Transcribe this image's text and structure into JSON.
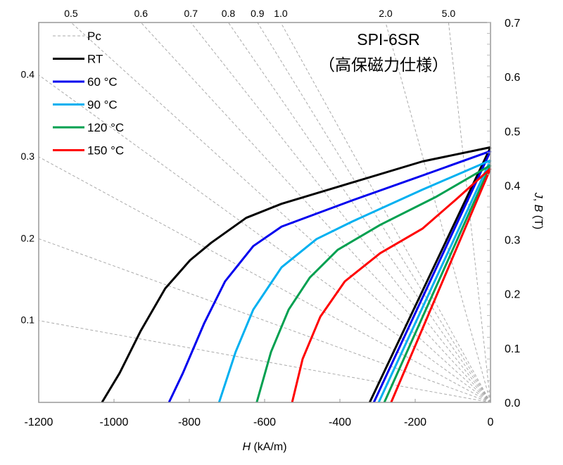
{
  "chart_data": {
    "type": "line",
    "title": "SPI-6SR",
    "subtitle": "（高保磁力仕様）",
    "xlabel": "H (kA/m)",
    "xlabel_italic": "H",
    "xlabel_unit": " (kA/m)",
    "ylabel": "J, B (T)",
    "ylabel_parts": {
      "j": "J",
      "sep": ", ",
      "b": "B",
      "unit": " (T)"
    },
    "xlim": [
      -1200,
      0
    ],
    "ylim": [
      0,
      0.7
    ],
    "x_ticks": [
      -1200,
      -1000,
      -800,
      -600,
      -400,
      -200,
      0
    ],
    "x_tick_labels": [
      "-1200",
      "-1000",
      "-800",
      "-600",
      "-400",
      "-200",
      "0"
    ],
    "y_ticks": [
      0.0,
      0.1,
      0.2,
      0.3,
      0.4,
      0.5,
      0.6,
      0.7
    ],
    "y_tick_labels": [
      "0.0",
      "0.1",
      "0.2",
      "0.3",
      "0.4",
      "0.5",
      "0.6",
      "0.7"
    ],
    "y_axis_side": "right",
    "grid": false,
    "legend_position": "top-left",
    "pc_lines": {
      "name": "Pc",
      "color": "#aaaaaa",
      "values": [
        0.1,
        0.2,
        0.3,
        0.4,
        0.5,
        0.6,
        0.7,
        0.8,
        0.9,
        1.0,
        2.0,
        5.0
      ],
      "labels": [
        "0.1",
        "0.2",
        "0.3",
        "0.4",
        "0.5",
        "0.6",
        "0.7",
        "0.8",
        "0.9",
        "1.0",
        "2.0",
        "5.0"
      ]
    },
    "series": [
      {
        "name": "RT",
        "color": "#000000",
        "J": [
          [
            -1032,
            0
          ],
          [
            -985,
            0.054
          ],
          [
            -929,
            0.132
          ],
          [
            -864,
            0.21
          ],
          [
            -798,
            0.262
          ],
          [
            -742,
            0.294
          ],
          [
            -649,
            0.34
          ],
          [
            -555,
            0.366
          ],
          [
            -368,
            0.405
          ],
          [
            -181,
            0.444
          ],
          [
            0,
            0.47
          ]
        ],
        "B": [
          [
            -321,
            0
          ],
          [
            0,
            0.47
          ]
        ]
      },
      {
        "name": "60 °C",
        "color": "#0000ee",
        "J": [
          [
            -854,
            0
          ],
          [
            -817,
            0.054
          ],
          [
            -761,
            0.145
          ],
          [
            -705,
            0.223
          ],
          [
            -630,
            0.288
          ],
          [
            -555,
            0.324
          ],
          [
            -368,
            0.372
          ],
          [
            -181,
            0.418
          ],
          [
            0,
            0.463
          ]
        ],
        "B": [
          [
            -310,
            0
          ],
          [
            0,
            0.463
          ]
        ]
      },
      {
        "name": "90 °C",
        "color": "#00b0f0",
        "J": [
          [
            -721,
            0
          ],
          [
            -677,
            0.093
          ],
          [
            -630,
            0.171
          ],
          [
            -555,
            0.249
          ],
          [
            -462,
            0.301
          ],
          [
            -368,
            0.333
          ],
          [
            -181,
            0.392
          ],
          [
            0,
            0.446
          ]
        ],
        "B": [
          [
            -297,
            0
          ],
          [
            0,
            0.446
          ]
        ]
      },
      {
        "name": "120 °C",
        "color": "#00a050",
        "J": [
          [
            -621,
            0
          ],
          [
            -583,
            0.093
          ],
          [
            -536,
            0.171
          ],
          [
            -480,
            0.23
          ],
          [
            -406,
            0.281
          ],
          [
            -293,
            0.327
          ],
          [
            -144,
            0.379
          ],
          [
            0,
            0.437
          ]
        ],
        "B": [
          [
            -282,
            0
          ],
          [
            0,
            0.437
          ]
        ]
      },
      {
        "name": "150 °C",
        "color": "#ff0000",
        "J": [
          [
            -527,
            0
          ],
          [
            -499,
            0.08
          ],
          [
            -452,
            0.158
          ],
          [
            -387,
            0.223
          ],
          [
            -293,
            0.275
          ],
          [
            -181,
            0.32
          ],
          [
            -90,
            0.375
          ],
          [
            0,
            0.431
          ]
        ],
        "B": [
          [
            -264,
            0
          ],
          [
            0,
            0.431
          ]
        ]
      }
    ]
  }
}
